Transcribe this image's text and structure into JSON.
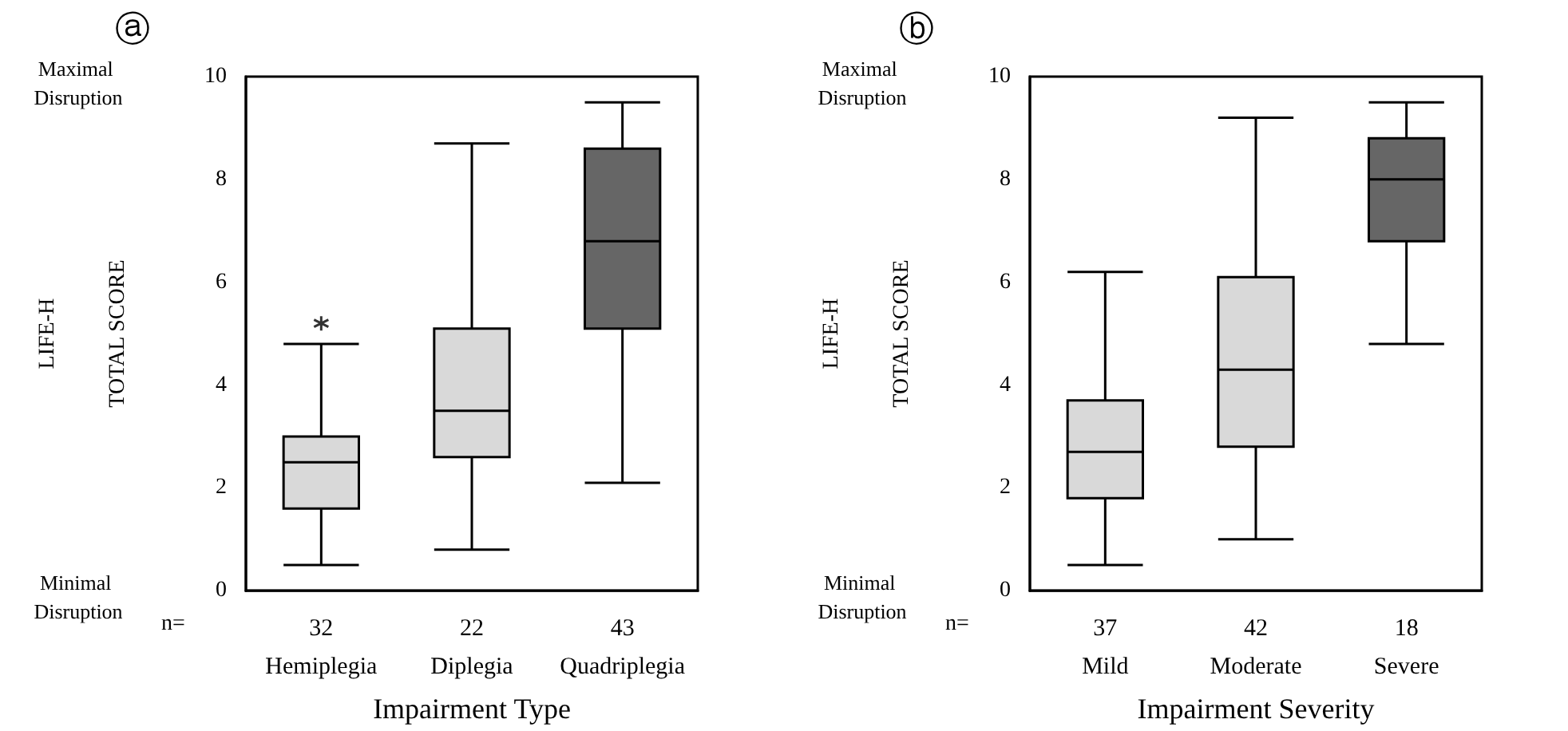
{
  "chart_data": [
    {
      "type": "box",
      "title": "ⓐ",
      "xlabel": "Impairment Type",
      "ylabel": "LIFE-H\nTOTAL SCORE",
      "categories": [
        "32\nHemiplegia",
        "22\nDiplegia",
        "43\nQuadriplegia"
      ],
      "boxes": [
        {
          "low": 0.5,
          "q1": 1.6,
          "median": 2.5,
          "q3": 3.0,
          "high": 4.8,
          "outliers": [
            5.2
          ]
        },
        {
          "low": 0.8,
          "q1": 2.6,
          "median": 3.5,
          "q3": 5.1,
          "high": 8.7
        },
        {
          "low": 2.1,
          "q1": 5.1,
          "median": 6.8,
          "q3": 8.6,
          "high": 9.5
        }
      ],
      "colors": [
        "#d9d9d9",
        "#d9d9d9",
        "#666666"
      ],
      "ylim": [
        0,
        10
      ],
      "yticks": [
        0,
        2,
        4,
        6,
        8,
        10
      ],
      "annotations": [
        "Maximal Disruption",
        "Minimal Disruption",
        "n="
      ]
    },
    {
      "type": "box",
      "title": "ⓑ",
      "xlabel": "Impairment Severity",
      "ylabel": "LIFE-H\nTOTAL SCORE",
      "categories": [
        "37\nMild",
        "42\nModerate",
        "18\nSevere"
      ],
      "boxes": [
        {
          "low": 0.5,
          "q1": 1.8,
          "median": 2.7,
          "q3": 3.7,
          "high": 6.2
        },
        {
          "low": 1.0,
          "q1": 2.8,
          "median": 4.3,
          "q3": 6.1,
          "high": 9.2
        },
        {
          "low": 4.8,
          "q1": 6.8,
          "median": 8.0,
          "q3": 8.8,
          "high": 9.5
        }
      ],
      "colors": [
        "#d9d9d9",
        "#d9d9d9",
        "#666666"
      ],
      "ylim": [
        0,
        10
      ],
      "yticks": [
        0,
        2,
        4,
        6,
        8,
        10
      ],
      "annotations": [
        "Maximal Disruption",
        "Minimal Disruption",
        "n="
      ]
    }
  ]
}
